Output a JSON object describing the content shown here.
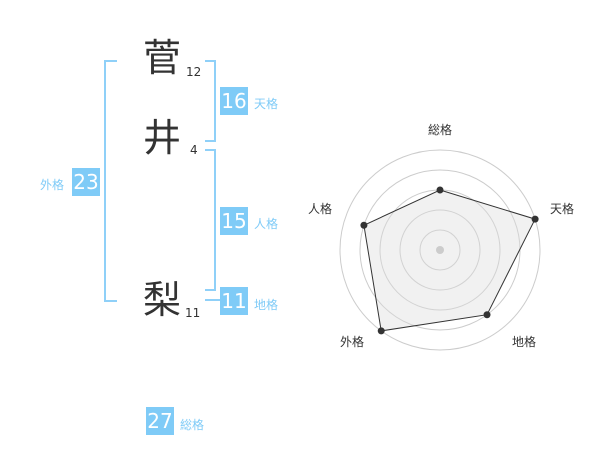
{
  "name": [
    {
      "char": "菅",
      "strokes": "12"
    },
    {
      "char": "井",
      "strokes": "4"
    },
    {
      "char": "梨",
      "strokes": "11"
    }
  ],
  "results": {
    "tenkaku": {
      "label": "天格",
      "value": "16"
    },
    "jinkaku": {
      "label": "人格",
      "value": "15"
    },
    "chikaku": {
      "label": "地格",
      "value": "11"
    },
    "gaikaku": {
      "label": "外格",
      "value": "23"
    },
    "soukaku": {
      "label": "総格",
      "value": "27"
    }
  },
  "accent_color": "#7fcbf7",
  "chart_data": {
    "type": "radar",
    "axes": [
      "総格",
      "天格",
      "地格",
      "外格",
      "人格"
    ],
    "values": [
      3,
      5,
      4,
      5,
      4
    ],
    "range": [
      0,
      5
    ],
    "rings": 5
  }
}
